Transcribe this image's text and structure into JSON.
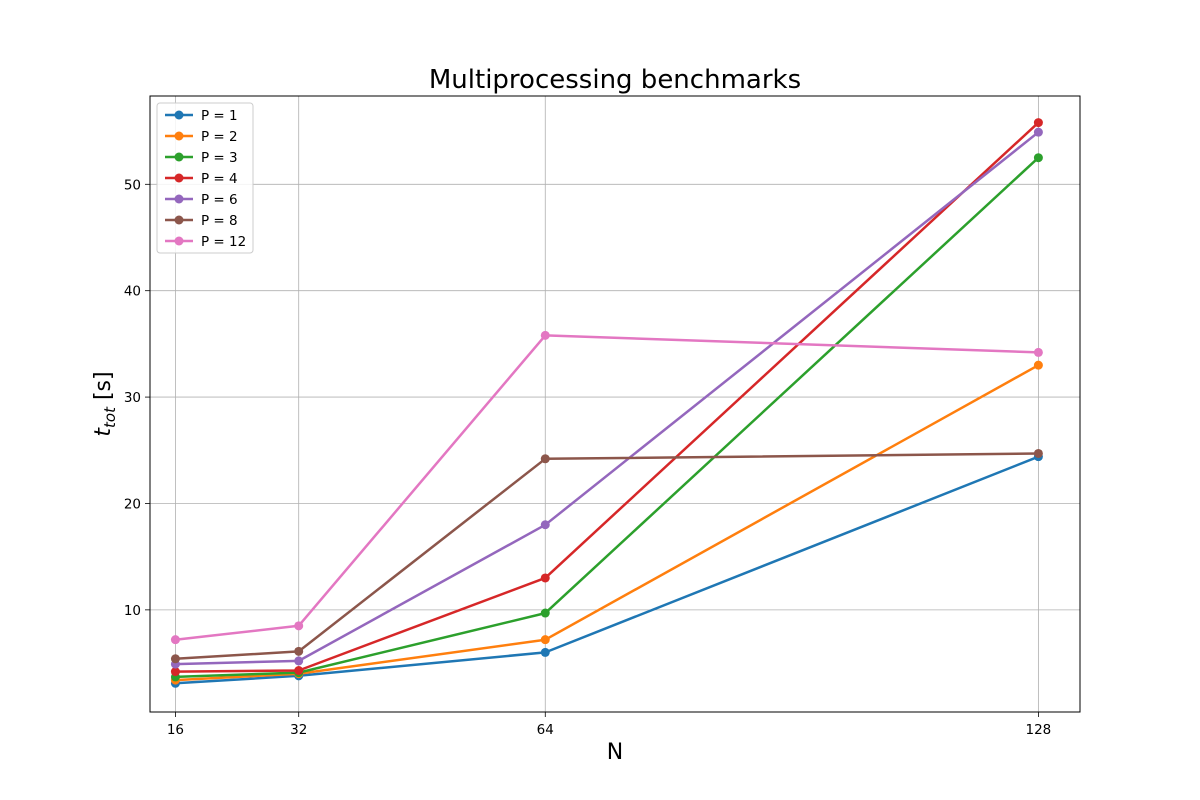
{
  "chart_data": {
    "type": "line",
    "title": "Multiprocessing benchmarks",
    "xlabel": "N",
    "ylabel": "t_tot [s]",
    "ylabel_main": "t",
    "ylabel_sub": "tot",
    "ylabel_unit": " [s]",
    "x": [
      16,
      32,
      64,
      128
    ],
    "x_ticks": [
      "16",
      "32",
      "64",
      "128"
    ],
    "y_ticks": [
      10,
      20,
      30,
      40,
      50
    ],
    "xlim": [
      12.7,
      133.4
    ],
    "ylim": [
      0.4,
      58.3
    ],
    "grid": true,
    "legend_position": "top-left",
    "series": [
      {
        "name": "P = 1",
        "color": "#1f77b4",
        "values": [
          3.1,
          3.8,
          6.0,
          24.4
        ]
      },
      {
        "name": "P = 2",
        "color": "#ff7f0e",
        "values": [
          3.4,
          4.0,
          7.2,
          33.0
        ]
      },
      {
        "name": "P = 3",
        "color": "#2ca02c",
        "values": [
          3.7,
          4.1,
          9.7,
          52.5
        ]
      },
      {
        "name": "P = 4",
        "color": "#d62728",
        "values": [
          4.2,
          4.3,
          13.0,
          55.8
        ]
      },
      {
        "name": "P = 6",
        "color": "#9467bd",
        "values": [
          4.9,
          5.2,
          18.0,
          54.9
        ]
      },
      {
        "name": "P = 8",
        "color": "#8c564b",
        "values": [
          5.4,
          6.1,
          24.2,
          24.7
        ]
      },
      {
        "name": "P = 12",
        "color": "#e377c2",
        "values": [
          7.2,
          8.5,
          35.8,
          34.2
        ]
      }
    ]
  }
}
